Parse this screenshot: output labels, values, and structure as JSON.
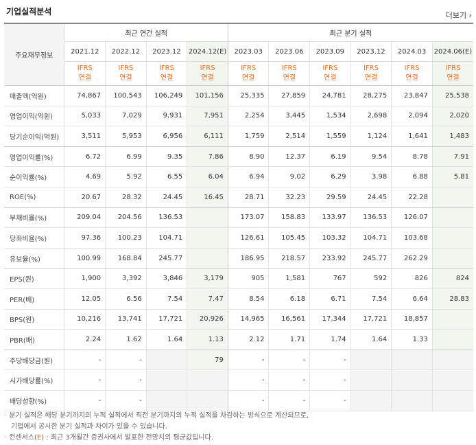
{
  "title": "기업실적분석",
  "more_label": "더보기",
  "more_chevron": "›",
  "header": {
    "row_label": "주요재무정보",
    "annual_group": "최근 연간 실적",
    "quarter_group": "최근 분기 실적",
    "periods": [
      "2021.12",
      "2022.12",
      "2023.12",
      "2024.12(E)",
      "2023.03",
      "2023.06",
      "2023.09",
      "2023.12",
      "2024.03",
      "2024.06(E)"
    ],
    "ifrs_top": "IFRS",
    "ifrs_bottom": "연결"
  },
  "rows": [
    {
      "label": "매출액(억원)",
      "values": [
        "74,867",
        "100,543",
        "106,249",
        "101,156",
        "25,335",
        "27,859",
        "24,781",
        "28,275",
        "23,847",
        "25,538"
      ]
    },
    {
      "label": "영업이익(억원)",
      "values": [
        "5,033",
        "7,029",
        "9,931",
        "7,951",
        "2,254",
        "3,445",
        "1,534",
        "2,698",
        "2,094",
        "2,020"
      ]
    },
    {
      "label": "당기순이익(억원)",
      "values": [
        "3,511",
        "5,953",
        "6,956",
        "6,111",
        "1,759",
        "2,514",
        "1,559",
        "1,124",
        "1,641",
        "1,483"
      ]
    },
    {
      "label": "영업이익률(%)",
      "values": [
        "6.72",
        "6.99",
        "9.35",
        "7.86",
        "8.90",
        "12.37",
        "6.19",
        "9.54",
        "8.78",
        "7.91"
      ]
    },
    {
      "label": "순이익률(%)",
      "values": [
        "4.69",
        "5.92",
        "6.55",
        "6.04",
        "6.94",
        "9.02",
        "6.29",
        "3.98",
        "6.88",
        "5.81"
      ]
    },
    {
      "label": "ROE(%)",
      "values": [
        "20.67",
        "28.32",
        "24.45",
        "16.45",
        "28.71",
        "32.23",
        "29.59",
        "24.45",
        "22.28",
        ""
      ]
    },
    {
      "label": "부채비율(%)",
      "values": [
        "209.04",
        "204.56",
        "136.53",
        "",
        "173.07",
        "158.83",
        "133.97",
        "136.53",
        "126.07",
        ""
      ]
    },
    {
      "label": "당좌비율(%)",
      "values": [
        "97.36",
        "100.23",
        "104.71",
        "",
        "126.61",
        "105.45",
        "103.32",
        "104.71",
        "103.68",
        ""
      ]
    },
    {
      "label": "유보율(%)",
      "values": [
        "100.99",
        "168.84",
        "245.77",
        "",
        "186.95",
        "218.57",
        "233.92",
        "245.77",
        "262.29",
        ""
      ]
    },
    {
      "label": "EPS(원)",
      "values": [
        "1,900",
        "3,392",
        "3,846",
        "3,179",
        "905",
        "1,581",
        "767",
        "592",
        "826",
        "824"
      ]
    },
    {
      "label": "PER(배)",
      "values": [
        "12.05",
        "6.56",
        "7.54",
        "7.47",
        "8.54",
        "6.18",
        "6.71",
        "7.54",
        "6.64",
        "28.83"
      ]
    },
    {
      "label": "BPS(원)",
      "values": [
        "10,216",
        "13,741",
        "17,721",
        "20,926",
        "14,965",
        "16,561",
        "17,344",
        "17,721",
        "18,857",
        ""
      ]
    },
    {
      "label": "PBR(배)",
      "values": [
        "2.24",
        "1.62",
        "1.64",
        "1.13",
        "2.12",
        "1.71",
        "1.74",
        "1.64",
        "1.33",
        ""
      ]
    },
    {
      "label": "주당배당금(원)",
      "values": [
        "-",
        "-",
        "",
        "79",
        "-",
        "-",
        "-",
        "",
        "",
        ""
      ]
    },
    {
      "label": "시가배당률(%)",
      "values": [
        "-",
        "-",
        "",
        "",
        "-",
        "-",
        "-",
        "",
        "",
        ""
      ]
    },
    {
      "label": "배당성향(%)",
      "values": [
        "-",
        "-",
        "",
        "",
        "-",
        "-",
        "-",
        "",
        "",
        ""
      ]
    }
  ],
  "notes": {
    "line1": "분기 실적은 해당 분기까지의 누적 실적에서 직전 분기까지의 누적 실적을 차감하는 방식으로 계산되므로,",
    "line2": "기업에서 공시한 분기 실적과 차이가 있을 수 있습니다.",
    "line3_prefix": "컨센서스(",
    "line3_e": "E",
    "line3_suffix": ") : 최근 3개월간 증권사에서 발표한 전망치의 평균값입니다.",
    "bullet": "·"
  }
}
